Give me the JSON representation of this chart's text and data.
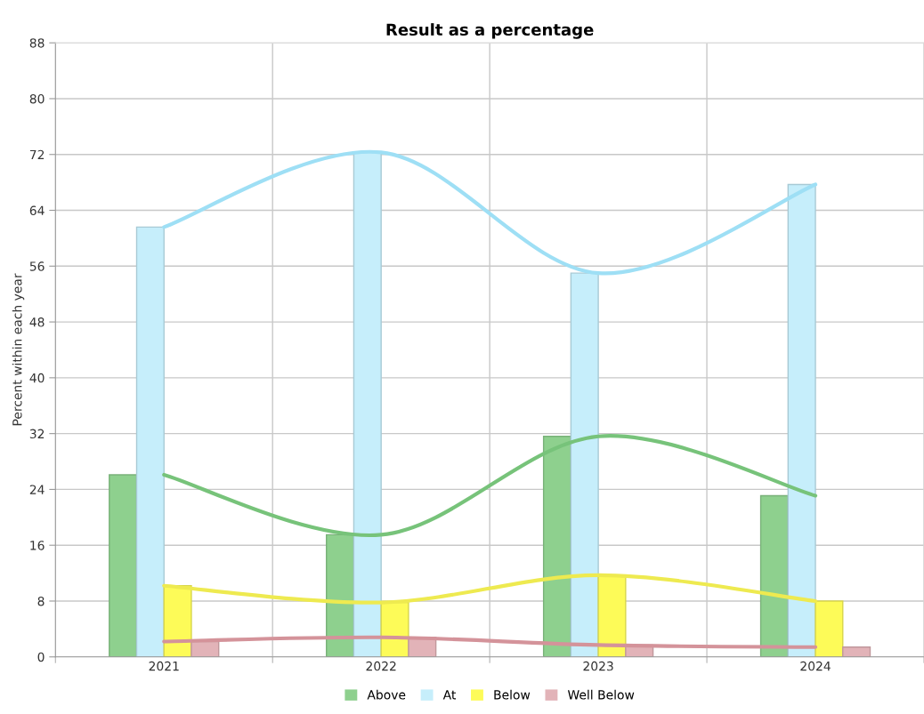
{
  "chart_data": {
    "type": "bar",
    "title": "Result as a percentage",
    "ylabel": "Percent within each year",
    "categories": [
      "2021",
      "2022",
      "2023",
      "2024"
    ],
    "series": [
      {
        "name": "Above",
        "color": "#8ed08e",
        "values": [
          26.1,
          17.5,
          31.6,
          23.1
        ]
      },
      {
        "name": "At",
        "color": "#c6eefb",
        "values": [
          61.6,
          72.3,
          55.0,
          67.7
        ]
      },
      {
        "name": "Below",
        "color": "#fdfb58",
        "values": [
          10.2,
          7.8,
          11.7,
          8.0
        ]
      },
      {
        "name": "Well Below",
        "color": "#e2b3b8",
        "values": [
          2.2,
          2.8,
          1.7,
          1.4
        ]
      },
      {
        "type": "line",
        "color": "#77c37a",
        "values": [
          26.1,
          17.5,
          31.6,
          23.1
        ]
      },
      {
        "type": "line",
        "color": "#9edff5",
        "values": [
          61.6,
          72.3,
          55.0,
          67.7
        ]
      },
      {
        "type": "line",
        "color": "#eeea50",
        "values": [
          10.2,
          7.8,
          11.7,
          8.0
        ]
      },
      {
        "type": "line",
        "color": "#d4939a",
        "values": [
          2.2,
          2.8,
          1.7,
          1.4
        ]
      }
    ],
    "ylim": [
      0,
      88
    ],
    "yticks": [
      0,
      8,
      16,
      24,
      32,
      40,
      48,
      56,
      64,
      72,
      80,
      88
    ],
    "grid": true,
    "legend": "bottom",
    "marker": "none",
    "line_style": "solid"
  }
}
